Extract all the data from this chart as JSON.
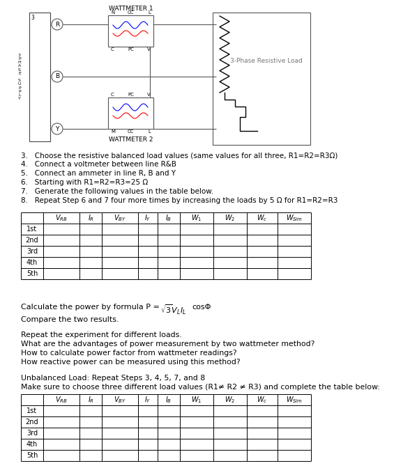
{
  "bg_color": "#ffffff",
  "wm1_label": "WATTMETER 1",
  "wm2_label": "WATTMETER 2",
  "load_label": "3-Phase Resistive Load",
  "supply_label_chars": [
    "3",
    "P",
    "H",
    "A",
    "S",
    "E",
    " ",
    "S",
    "U",
    "P",
    "P",
    "L",
    "Y"
  ],
  "phases": [
    "R",
    "B",
    "Y"
  ],
  "wm1_top_labels": [
    "N",
    "CC",
    "L"
  ],
  "wm1_bot_labels": [
    "C",
    "PC",
    "V"
  ],
  "wm2_top_labels": [
    "C",
    "PC",
    "V"
  ],
  "wm2_bot_labels": [
    "M",
    "CC",
    "L"
  ],
  "instructions": [
    "3.   Choose the resistive balanced load values (same values for all three, R1=R2=R3Ω)",
    "4.   Connect a voltmeter between line R&B",
    "5.   Connect an ammeter in line R, B and Y",
    "6.   Starting with R1=R2=R3=25 Ω",
    "7.   Generate the following values in the table below.",
    "8.   Repeat Step 6 and 7 four more times by increasing the loads by 5 Ω for R1=R2=R3"
  ],
  "table_headers": [
    "",
    "VRB",
    "IR",
    "VBY",
    "IY",
    "IB",
    "W1",
    "W2",
    "WC",
    "WSim"
  ],
  "table_rows": [
    "1st",
    "2nd",
    "3rd",
    "4th",
    "5th"
  ],
  "formula_line": "Calculate the power by formula P = √3VLIL cosΦ",
  "compare_line": "Compare the two results.",
  "repeat_lines": [
    "Repeat the experiment for different loads.",
    "What are the advantages of power measurement by two wattmeter method?",
    "How to calculate power factor from wattmeter readings?",
    "How reactive power can be measured using this method?"
  ],
  "unbal_line1": "Unbalanced Load: Repeat Steps 3, 4, 5, 7, and 8",
  "unbal_line2": "Make sure to choose three different load values (R1≠ R2 ≠ R3) and complete the table below:"
}
